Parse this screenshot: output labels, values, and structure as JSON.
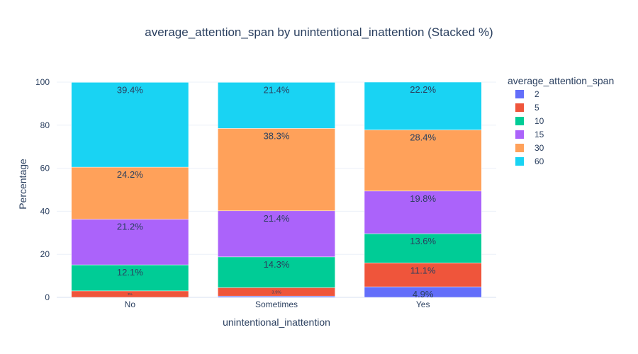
{
  "chart_data": {
    "type": "bar",
    "barmode": "stack",
    "title": "average_attention_span by unintentional_inattention (Stacked %)",
    "xlabel": "unintentional_inattention",
    "ylabel": "Percentage",
    "ylim": [
      0,
      100
    ],
    "yticks": [
      0,
      20,
      40,
      60,
      80,
      100
    ],
    "grid": true,
    "legend_title": "average_attention_span",
    "legend_position": "right",
    "categories": [
      "No",
      "Sometimes",
      "Yes"
    ],
    "series": [
      {
        "name": "2",
        "color": "#636efa",
        "values": [
          0.0,
          0.6,
          4.9
        ],
        "labels": [
          "",
          "",
          "4.9%"
        ]
      },
      {
        "name": "5",
        "color": "#ef553b",
        "values": [
          3.0,
          3.9,
          11.1
        ],
        "labels": [
          "3%",
          "3.9%",
          "11.1%"
        ]
      },
      {
        "name": "10",
        "color": "#00cc96",
        "values": [
          12.1,
          14.3,
          13.6
        ],
        "labels": [
          "12.1%",
          "14.3%",
          "13.6%"
        ]
      },
      {
        "name": "15",
        "color": "#ab63fa",
        "values": [
          21.2,
          21.4,
          19.8
        ],
        "labels": [
          "21.2%",
          "21.4%",
          "19.8%"
        ]
      },
      {
        "name": "30",
        "color": "#ffa15a",
        "values": [
          24.2,
          38.3,
          28.4
        ],
        "labels": [
          "24.2%",
          "38.3%",
          "28.4%"
        ]
      },
      {
        "name": "60",
        "color": "#19d3f3",
        "values": [
          39.4,
          21.4,
          22.2
        ],
        "labels": [
          "39.4%",
          "21.4%",
          "22.2%"
        ]
      }
    ]
  }
}
